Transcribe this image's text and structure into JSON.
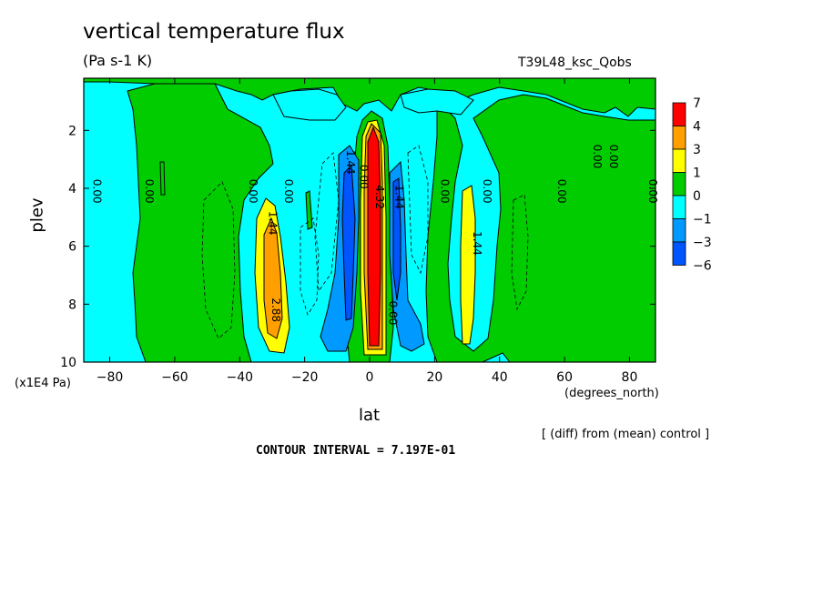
{
  "chart_data": {
    "type": "heatmap",
    "title": "vertical temperature flux",
    "subtitle": "(Pa s-1 K)",
    "experiment": "T39L48_ksc_Qobs",
    "xlabel": "lat",
    "xunits": "(degrees_north)",
    "ylabel": "plev",
    "yunits": "(x1E4 Pa)",
    "footnote": "[ (diff) from (mean) control ]",
    "contour_interval": "CONTOUR INTERVAL = 7.197E-01",
    "xlim": [
      -88,
      88
    ],
    "ylim": [
      10,
      0.2
    ],
    "x_ticks": [
      -80,
      -60,
      -40,
      -20,
      0,
      20,
      40,
      60,
      80
    ],
    "y_ticks": [
      2,
      4,
      6,
      8,
      10
    ],
    "legend": {
      "placement": "right",
      "labels": [
        "7",
        "4",
        "3",
        "1",
        "0",
        "-1",
        "-3",
        "-6"
      ],
      "colors": [
        "#ff0000",
        "#ffa000",
        "#ffff00",
        "#00cc00",
        "#00ffff",
        "#0099ff",
        "#0055ff"
      ]
    },
    "contour_labels": [
      {
        "text": "0.00",
        "x": -85,
        "y": 4.1
      },
      {
        "text": "0.00",
        "x": -69,
        "y": 4.1
      },
      {
        "text": "0.00",
        "x": -37,
        "y": 4.1
      },
      {
        "text": "0.00",
        "x": -26,
        "y": 4.1
      },
      {
        "text": "1.44",
        "x": -31,
        "y": 5.2
      },
      {
        "text": "2.88",
        "x": -30,
        "y": 8.2
      },
      {
        "text": "1.44",
        "x": -7,
        "y": 3.1
      },
      {
        "text": "0.00",
        "x": -3,
        "y": 3.6
      },
      {
        "text": "4.32",
        "x": 2,
        "y": 4.3
      },
      {
        "text": "1.44",
        "x": 8,
        "y": 4.3
      },
      {
        "text": "0.00",
        "x": 6,
        "y": 8.3
      },
      {
        "text": "0.00",
        "x": 22,
        "y": 4.1
      },
      {
        "text": "0.00",
        "x": 35,
        "y": 4.1
      },
      {
        "text": "1.44",
        "x": 32,
        "y": 5.9
      },
      {
        "text": "0.00",
        "x": 58,
        "y": 4.1
      },
      {
        "text": "0.00",
        "x": 69,
        "y": 2.9
      },
      {
        "text": "0.00",
        "x": 74,
        "y": 2.9
      },
      {
        "text": "0.00",
        "x": 86,
        "y": 4.1
      }
    ]
  }
}
